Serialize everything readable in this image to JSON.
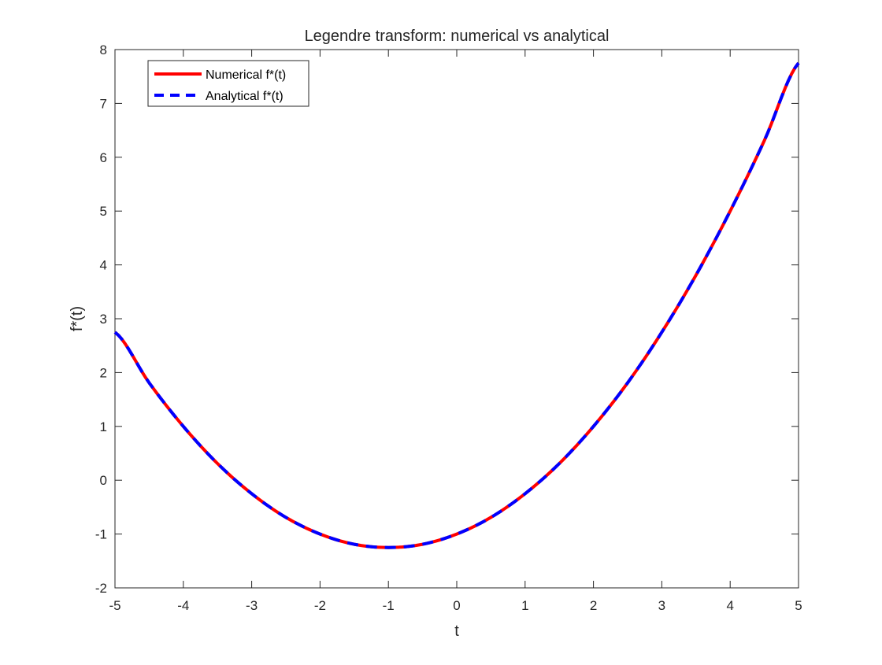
{
  "chart_data": {
    "type": "line",
    "title": "Legendre transform: numerical vs analytical",
    "xlabel": "t",
    "ylabel": "f*(t)",
    "xlim": [
      -5,
      5
    ],
    "ylim": [
      -2,
      8
    ],
    "xticks": [
      "-5",
      "-4",
      "-3",
      "-2",
      "-1",
      "0",
      "1",
      "2",
      "3",
      "4",
      "5"
    ],
    "yticks": [
      "-2",
      "-1",
      "0",
      "1",
      "2",
      "3",
      "4",
      "5",
      "6",
      "7",
      "8"
    ],
    "grid": false,
    "legend_position": "top-left",
    "x": [
      -5,
      -4.5,
      -4,
      -3.5,
      -3,
      -2.5,
      -2,
      -1.5,
      -1,
      -0.5,
      0,
      0.5,
      1,
      1.5,
      2,
      2.5,
      3,
      3.5,
      4,
      4.5,
      5
    ],
    "series": [
      {
        "name": "Numerical f*(t)",
        "color": "#ff0000",
        "style": "solid",
        "values": [
          2.75,
          1.81,
          1.0,
          0.31,
          -0.25,
          -0.69,
          -1.0,
          -1.19,
          -1.25,
          -1.19,
          -1.0,
          -0.69,
          -0.25,
          0.31,
          1.0,
          1.81,
          2.75,
          3.81,
          5.0,
          6.31,
          7.75
        ]
      },
      {
        "name": "Analytical f*(t)",
        "color": "#0000ff",
        "style": "dashed",
        "values": [
          2.75,
          1.81,
          1.0,
          0.31,
          -0.25,
          -0.69,
          -1.0,
          -1.19,
          -1.25,
          -1.19,
          -1.0,
          -0.69,
          -0.25,
          0.31,
          1.0,
          1.81,
          2.75,
          3.81,
          5.0,
          6.31,
          7.75
        ]
      }
    ]
  }
}
